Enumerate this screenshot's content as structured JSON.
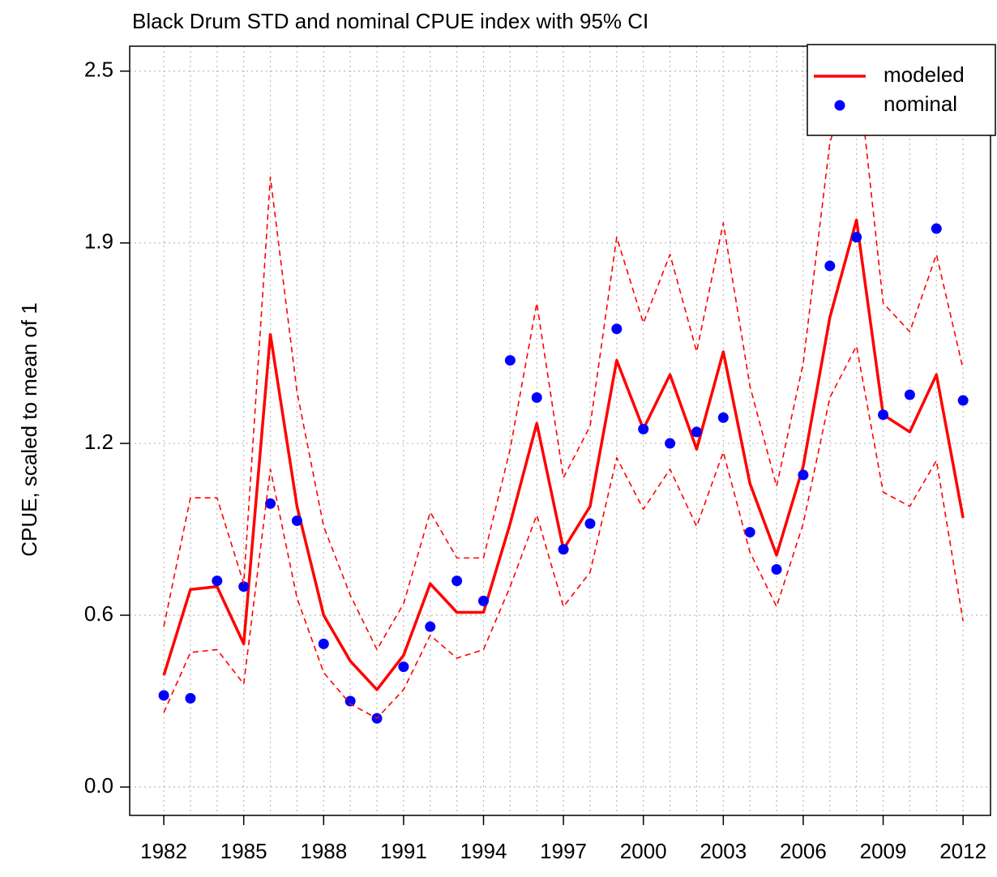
{
  "chart_data": {
    "type": "line",
    "title": "Black Drum  STD and nominal CPUE index with 95% CI",
    "y_label": "CPUE, scaled to mean of 1",
    "x": [
      1982,
      1983,
      1984,
      1985,
      1986,
      1987,
      1988,
      1989,
      1990,
      1991,
      1992,
      1993,
      1994,
      1995,
      1996,
      1997,
      1998,
      1999,
      2000,
      2001,
      2002,
      2003,
      2004,
      2005,
      2006,
      2007,
      2008,
      2009,
      2010,
      2011,
      2012
    ],
    "series": [
      {
        "name": "modeled",
        "color": "#ff0000",
        "style": "line",
        "values": [
          0.39,
          0.69,
          0.7,
          0.5,
          1.58,
          0.98,
          0.6,
          0.44,
          0.34,
          0.46,
          0.71,
          0.61,
          0.61,
          0.92,
          1.27,
          0.83,
          0.98,
          1.49,
          1.25,
          1.44,
          1.18,
          1.52,
          1.06,
          0.81,
          1.12,
          1.64,
          1.98,
          1.3,
          1.24,
          1.44,
          0.94
        ]
      },
      {
        "name": "nominal",
        "color": "#0000ff",
        "style": "points",
        "values": [
          0.32,
          0.31,
          0.72,
          0.7,
          0.99,
          0.93,
          0.5,
          0.3,
          0.24,
          0.42,
          0.56,
          0.72,
          0.65,
          1.49,
          1.36,
          0.83,
          0.92,
          1.6,
          1.25,
          1.2,
          1.24,
          1.29,
          0.89,
          0.76,
          1.09,
          1.82,
          1.92,
          1.3,
          1.37,
          1.95,
          1.35
        ]
      },
      {
        "color": "#ff0000",
        "style": "dashed",
        "values": [
          0.56,
          1.01,
          1.01,
          0.71,
          2.13,
          1.38,
          0.91,
          0.67,
          0.48,
          0.64,
          0.96,
          0.8,
          0.8,
          1.18,
          1.69,
          1.08,
          1.26,
          1.92,
          1.62,
          1.86,
          1.52,
          1.97,
          1.4,
          1.05,
          1.48,
          2.25,
          2.55,
          1.69,
          1.59,
          1.86,
          1.46
        ]
      },
      {
        "color": "#ff0000",
        "style": "dashed",
        "values": [
          0.26,
          0.47,
          0.48,
          0.36,
          1.11,
          0.66,
          0.4,
          0.29,
          0.24,
          0.34,
          0.53,
          0.45,
          0.48,
          0.7,
          0.95,
          0.63,
          0.75,
          1.15,
          0.97,
          1.11,
          0.91,
          1.17,
          0.82,
          0.63,
          0.92,
          1.36,
          1.54,
          1.03,
          0.98,
          1.14,
          0.58
        ]
      }
    ],
    "xlim": [
      1980.72,
      2013.03
    ],
    "ylim": [
      -0.099,
      2.587
    ],
    "xticks": [
      1982,
      1985,
      1988,
      1991,
      1994,
      1997,
      2000,
      2003,
      2006,
      2009,
      2012
    ],
    "yticks": [
      {
        "value": 0,
        "label": "0.0"
      },
      0.6,
      1.2,
      1.9,
      2.5
    ],
    "grid": true,
    "legend": "topright"
  }
}
